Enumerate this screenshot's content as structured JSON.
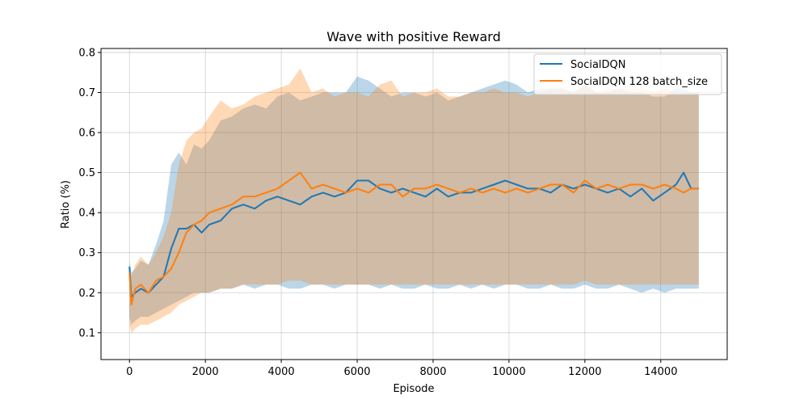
{
  "chart_data": {
    "type": "line",
    "title": "Wave with positive Reward",
    "xlabel": "Episode",
    "ylabel": "Ratio (%)",
    "xlim": [
      -750,
      15750
    ],
    "ylim": [
      0.033,
      0.81
    ],
    "x_ticks": [
      0,
      2000,
      4000,
      6000,
      8000,
      10000,
      12000,
      14000
    ],
    "y_ticks": [
      0.1,
      0.2,
      0.3,
      0.4,
      0.5,
      0.6,
      0.7,
      0.8
    ],
    "grid": true,
    "legend_position": "top-right",
    "series": [
      {
        "name": "SocialDQN",
        "color": "#1f77b4",
        "band_color": "#1f77b4",
        "x": [
          0,
          50,
          150,
          300,
          500,
          700,
          900,
          1100,
          1300,
          1500,
          1700,
          1900,
          2100,
          2400,
          2700,
          3000,
          3300,
          3600,
          3900,
          4200,
          4500,
          4800,
          5100,
          5400,
          5700,
          6000,
          6300,
          6600,
          6900,
          7200,
          7500,
          7800,
          8100,
          8400,
          8700,
          9000,
          9300,
          9600,
          9900,
          10200,
          10500,
          10800,
          11100,
          11400,
          11700,
          12000,
          12300,
          12600,
          12900,
          13200,
          13500,
          13800,
          14100,
          14400,
          14600,
          14800,
          15000
        ],
        "mean": [
          0.265,
          0.19,
          0.2,
          0.21,
          0.2,
          0.22,
          0.24,
          0.31,
          0.36,
          0.36,
          0.37,
          0.35,
          0.37,
          0.38,
          0.41,
          0.42,
          0.41,
          0.43,
          0.44,
          0.43,
          0.42,
          0.44,
          0.45,
          0.44,
          0.45,
          0.48,
          0.48,
          0.46,
          0.45,
          0.46,
          0.45,
          0.44,
          0.46,
          0.44,
          0.45,
          0.45,
          0.46,
          0.47,
          0.48,
          0.47,
          0.46,
          0.46,
          0.45,
          0.47,
          0.46,
          0.47,
          0.46,
          0.45,
          0.46,
          0.44,
          0.46,
          0.43,
          0.45,
          0.47,
          0.5,
          0.46,
          0.46
        ],
        "upper": [
          0.28,
          0.25,
          0.26,
          0.28,
          0.27,
          0.32,
          0.38,
          0.52,
          0.55,
          0.52,
          0.57,
          0.56,
          0.58,
          0.63,
          0.64,
          0.66,
          0.67,
          0.66,
          0.69,
          0.7,
          0.68,
          0.69,
          0.7,
          0.7,
          0.7,
          0.74,
          0.73,
          0.71,
          0.69,
          0.7,
          0.7,
          0.69,
          0.7,
          0.68,
          0.69,
          0.7,
          0.71,
          0.72,
          0.73,
          0.72,
          0.7,
          0.71,
          0.71,
          0.71,
          0.7,
          0.72,
          0.7,
          0.7,
          0.71,
          0.7,
          0.7,
          0.69,
          0.69,
          0.71,
          0.71,
          0.7,
          0.7
        ],
        "lower": [
          0.14,
          0.12,
          0.13,
          0.14,
          0.14,
          0.15,
          0.16,
          0.17,
          0.18,
          0.19,
          0.2,
          0.2,
          0.2,
          0.21,
          0.21,
          0.22,
          0.21,
          0.22,
          0.22,
          0.21,
          0.21,
          0.22,
          0.22,
          0.21,
          0.22,
          0.22,
          0.22,
          0.21,
          0.22,
          0.21,
          0.21,
          0.22,
          0.21,
          0.21,
          0.22,
          0.21,
          0.22,
          0.21,
          0.22,
          0.22,
          0.21,
          0.21,
          0.22,
          0.21,
          0.21,
          0.22,
          0.21,
          0.21,
          0.22,
          0.21,
          0.2,
          0.21,
          0.2,
          0.21,
          0.21,
          0.21,
          0.21
        ]
      },
      {
        "name": "SocialDQN 128 batch_size",
        "color": "#ff7f0e",
        "band_color": "#ff7f0e",
        "x": [
          0,
          50,
          150,
          300,
          500,
          700,
          900,
          1100,
          1300,
          1500,
          1700,
          1900,
          2100,
          2400,
          2700,
          3000,
          3300,
          3600,
          3900,
          4200,
          4500,
          4800,
          5100,
          5400,
          5700,
          6000,
          6300,
          6600,
          6900,
          7200,
          7500,
          7800,
          8100,
          8400,
          8700,
          9000,
          9300,
          9600,
          9900,
          10200,
          10500,
          10800,
          11100,
          11400,
          11700,
          12000,
          12300,
          12600,
          12900,
          13200,
          13500,
          13800,
          14100,
          14400,
          14600,
          14800,
          15000
        ],
        "mean": [
          0.25,
          0.17,
          0.21,
          0.22,
          0.2,
          0.23,
          0.24,
          0.26,
          0.3,
          0.35,
          0.37,
          0.38,
          0.4,
          0.41,
          0.42,
          0.44,
          0.44,
          0.45,
          0.46,
          0.48,
          0.5,
          0.46,
          0.47,
          0.46,
          0.45,
          0.46,
          0.45,
          0.47,
          0.47,
          0.44,
          0.46,
          0.46,
          0.47,
          0.46,
          0.45,
          0.46,
          0.45,
          0.46,
          0.45,
          0.46,
          0.45,
          0.46,
          0.47,
          0.47,
          0.45,
          0.48,
          0.46,
          0.47,
          0.46,
          0.47,
          0.47,
          0.46,
          0.47,
          0.46,
          0.45,
          0.46,
          0.46
        ],
        "upper": [
          0.27,
          0.24,
          0.27,
          0.29,
          0.27,
          0.3,
          0.34,
          0.4,
          0.52,
          0.58,
          0.6,
          0.61,
          0.64,
          0.68,
          0.66,
          0.67,
          0.69,
          0.7,
          0.71,
          0.72,
          0.76,
          0.7,
          0.71,
          0.69,
          0.7,
          0.7,
          0.69,
          0.72,
          0.73,
          0.69,
          0.7,
          0.7,
          0.71,
          0.69,
          0.69,
          0.7,
          0.7,
          0.71,
          0.7,
          0.7,
          0.69,
          0.7,
          0.71,
          0.71,
          0.7,
          0.72,
          0.7,
          0.71,
          0.71,
          0.71,
          0.71,
          0.7,
          0.71,
          0.7,
          0.7,
          0.7,
          0.7
        ],
        "lower": [
          0.12,
          0.1,
          0.11,
          0.12,
          0.12,
          0.13,
          0.14,
          0.15,
          0.17,
          0.18,
          0.19,
          0.2,
          0.2,
          0.21,
          0.21,
          0.22,
          0.22,
          0.22,
          0.22,
          0.23,
          0.23,
          0.22,
          0.22,
          0.22,
          0.22,
          0.22,
          0.22,
          0.22,
          0.22,
          0.22,
          0.22,
          0.22,
          0.22,
          0.22,
          0.22,
          0.22,
          0.22,
          0.22,
          0.22,
          0.22,
          0.22,
          0.22,
          0.22,
          0.22,
          0.22,
          0.23,
          0.22,
          0.22,
          0.22,
          0.22,
          0.22,
          0.22,
          0.22,
          0.22,
          0.22,
          0.22,
          0.22
        ]
      }
    ]
  }
}
